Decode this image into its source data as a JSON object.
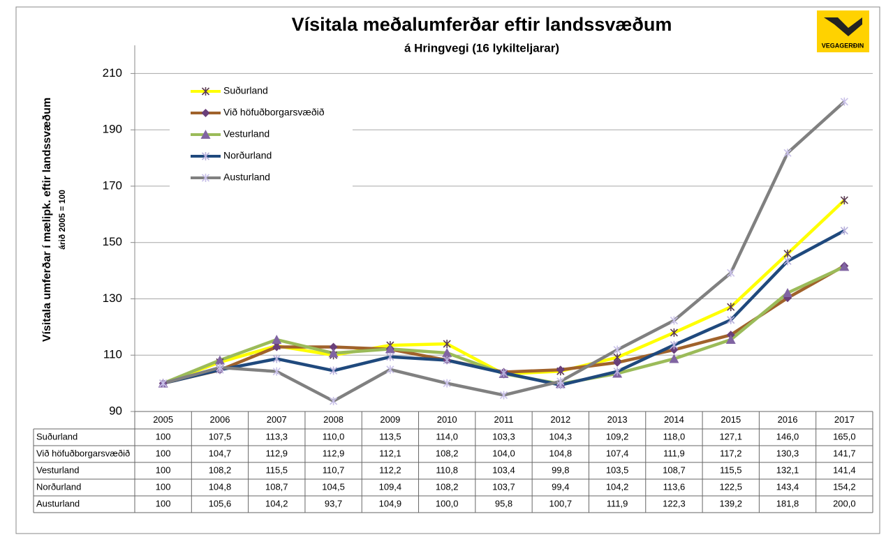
{
  "logo": "VEGAGERÐIN",
  "chart_data": {
    "type": "line",
    "title": "Vísitala meðalumferðar eftir landssvæðum",
    "subtitle": "á Hringvegi (16 lykilteljarar)",
    "y_label": "Vísitala umferðar í mælipk. eftir landssvæðum",
    "y_sublabel": "árið 2005 = 100",
    "categories": [
      "2005",
      "2006",
      "2007",
      "2008",
      "2009",
      "2010",
      "2011",
      "2012",
      "2013",
      "2014",
      "2015",
      "2016",
      "2017"
    ],
    "ylim": [
      90,
      220
    ],
    "yticks": [
      90,
      110,
      130,
      150,
      170,
      190,
      210
    ],
    "grid": true,
    "legend": "top-left",
    "series": [
      {
        "name": "Suðurland",
        "color": "#ffff00",
        "marker_color": "#5a3a50",
        "values": [
          100,
          107.5,
          113.3,
          110.0,
          113.5,
          114.0,
          103.3,
          104.3,
          109.2,
          118.0,
          127.1,
          146.0,
          165.0
        ],
        "value_labels": [
          "100",
          "107,5",
          "113,3",
          "110,0",
          "113,5",
          "114,0",
          "103,3",
          "104,3",
          "109,2",
          "118,0",
          "127,1",
          "146,0",
          "165,0"
        ]
      },
      {
        "name": "Við höfuðborgarsvæðið",
        "color": "#a0622b",
        "marker_color": "#6a3f7a",
        "values": [
          100,
          104.7,
          112.9,
          112.9,
          112.1,
          108.2,
          104.0,
          104.8,
          107.4,
          111.9,
          117.2,
          130.3,
          141.7
        ],
        "value_labels": [
          "100",
          "104,7",
          "112,9",
          "112,9",
          "112,1",
          "108,2",
          "104,0",
          "104,8",
          "107,4",
          "111,9",
          "117,2",
          "130,3",
          "141,7"
        ]
      },
      {
        "name": "Vesturland",
        "color": "#9bbb59",
        "marker_color": "#8064a2",
        "values": [
          100,
          108.2,
          115.5,
          110.7,
          112.2,
          110.8,
          103.4,
          99.8,
          103.5,
          108.7,
          115.5,
          132.1,
          141.4
        ],
        "value_labels": [
          "100",
          "108,2",
          "115,5",
          "110,7",
          "112,2",
          "110,8",
          "103,4",
          "99,8",
          "103,5",
          "108,7",
          "115,5",
          "132,1",
          "141,4"
        ]
      },
      {
        "name": "Norðurland",
        "color": "#1f497d",
        "marker_color": "#b7b0dc",
        "values": [
          100,
          104.8,
          108.7,
          104.5,
          109.4,
          108.2,
          103.7,
          99.4,
          104.2,
          113.6,
          122.5,
          143.4,
          154.2
        ],
        "value_labels": [
          "100",
          "104,8",
          "108,7",
          "104,5",
          "109,4",
          "108,2",
          "103,7",
          "99,4",
          "104,2",
          "113,6",
          "122,5",
          "143,4",
          "154,2"
        ]
      },
      {
        "name": "Austurland",
        "color": "#808080",
        "marker_color": "#c8c0e8",
        "values": [
          100,
          105.6,
          104.2,
          93.7,
          104.9,
          100.0,
          95.8,
          100.7,
          111.9,
          122.3,
          139.2,
          181.8,
          200.0
        ],
        "value_labels": [
          "100",
          "105,6",
          "104,2",
          "93,7",
          "104,9",
          "100,0",
          "95,8",
          "100,7",
          "111,9",
          "122,3",
          "139,2",
          "181,8",
          "200,0"
        ]
      }
    ]
  }
}
